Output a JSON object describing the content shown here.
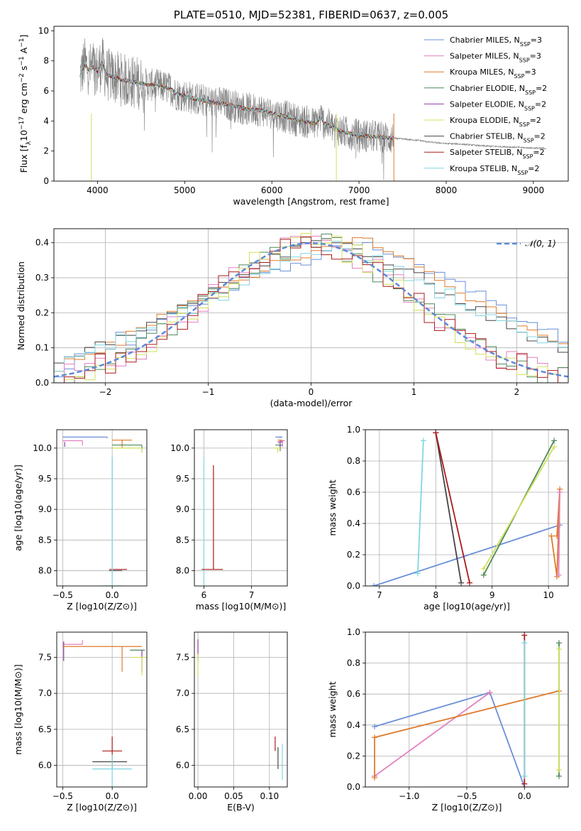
{
  "figure_title": "PLATE=0510, MJD=52381, FIBERID=0637, z=0.005",
  "colors": {
    "Chabrier MILES": "#6a8fd8",
    "Salpeter MILES": "#e37fbf",
    "Kroupa MILES": "#e07a2a",
    "Chabrier ELODIE": "#4e8a5a",
    "Salpeter ELODIE": "#8e3aa6",
    "Kroupa ELODIE": "#d2e05a",
    "Chabrier STELIB": "#444444",
    "Salpeter STELIB": "#aa1a1a",
    "Kroupa STELIB": "#7fd6e0",
    "data": "#808080",
    "gauss": "#5b8ad8",
    "grid": "#b0b0b0"
  },
  "chart_data": [
    {
      "id": "spectrum",
      "type": "line",
      "title": "PLATE=0510, MJD=52381, FIBERID=0637, z=0.005",
      "xlabel": "wavelength [Angstrom, rest frame]",
      "ylabel": "Flux [f$_\\lambda$10$^{-17}$ erg cm$^{-2}$ s$^{-1}$ A$^{-1}$]",
      "ylabel_parts": [
        "Flux [f",
        "λ",
        "10",
        "−17",
        " erg cm",
        "−2",
        " s",
        "−1",
        " A",
        "−1",
        "]"
      ],
      "xlim": [
        3500,
        9400
      ],
      "ylim": [
        0,
        10.3
      ],
      "xticks": [
        4000,
        5000,
        6000,
        7000,
        8000,
        9000
      ],
      "yticks": [
        0,
        2,
        4,
        6,
        8,
        10
      ],
      "grid": false,
      "legend_position": "top-right",
      "legend": [
        {
          "label": "Chabrier MILES",
          "sub": "3"
        },
        {
          "label": "Salpeter MILES",
          "sub": "3"
        },
        {
          "label": "Kroupa MILES",
          "sub": "3"
        },
        {
          "label": "Chabrier ELODIE",
          "sub": "2"
        },
        {
          "label": "Salpeter ELODIE",
          "sub": "2"
        },
        {
          "label": "Kroupa ELODIE",
          "sub": "2"
        },
        {
          "label": "Chabrier STELIB",
          "sub": "2"
        },
        {
          "label": "Salpeter STELIB",
          "sub": "2"
        },
        {
          "label": "Kroupa STELIB",
          "sub": "2"
        }
      ],
      "legend_prefix": ", N",
      "legend_sub_label": "SSP",
      "model_continuum": {
        "x": [
          3800,
          3850,
          3900,
          3950,
          4000,
          4050,
          4100,
          4200,
          4300,
          4400,
          4500,
          4600,
          4700,
          4800,
          4850,
          4900,
          5000,
          5100,
          5200,
          5300,
          5400,
          5500,
          5600,
          5700,
          5800,
          5900,
          6000,
          6100,
          6200,
          6300,
          6400,
          6500,
          6560,
          6600,
          6700,
          6800,
          6900,
          7000,
          7100,
          7200,
          7300,
          7400,
          7500,
          7600,
          7700,
          7800,
          7900,
          8000,
          8100,
          8200,
          8300,
          8400,
          8500,
          8600,
          8700,
          8800,
          8900,
          9000,
          9100
        ],
        "y": [
          7.0,
          7.8,
          7.4,
          7.6,
          7.3,
          7.9,
          7.1,
          6.9,
          6.7,
          6.6,
          6.5,
          6.4,
          6.35,
          6.2,
          6.1,
          5.8,
          5.7,
          5.5,
          5.4,
          5.25,
          5.2,
          5.1,
          4.95,
          4.8,
          4.75,
          4.7,
          4.5,
          4.4,
          4.2,
          4.05,
          3.95,
          3.8,
          4.25,
          3.85,
          3.6,
          3.3,
          3.15,
          3.05,
          3.0,
          2.95,
          2.9,
          2.85,
          2.8,
          2.75,
          2.7,
          2.6,
          2.55,
          2.5,
          2.48,
          2.45,
          2.4,
          2.35,
          2.32,
          2.3,
          2.28,
          2.25,
          2.22,
          2.2,
          2.18
        ]
      },
      "data_noise_cutoff": 7400,
      "data_extent": [
        3800,
        9150
      ]
    },
    {
      "id": "residuals",
      "type": "area",
      "xlabel": "(data-model)/error",
      "ylabel": "Normed distribution",
      "xlim": [
        -2.5,
        2.5
      ],
      "ylim": [
        0,
        0.44
      ],
      "xticks": [
        -2,
        -1,
        0,
        1,
        2
      ],
      "yticks": [
        0.0,
        0.1,
        0.2,
        0.3,
        0.4
      ],
      "grid": true,
      "legend_position": "top-right",
      "gauss_label": "𝒩(0, 1)",
      "bin_edges_start": -2.5,
      "bin_width": 0.1,
      "histograms": [
        {
          "model": "Chabrier MILES",
          "values": [
            0.03,
            0.05,
            0.07,
            0.08,
            0.09,
            0.1,
            0.13,
            0.12,
            0.14,
            0.16,
            0.18,
            0.19,
            0.2,
            0.22,
            0.23,
            0.24,
            0.25,
            0.27,
            0.29,
            0.3,
            0.32,
            0.31,
            0.33,
            0.35,
            0.34,
            0.36,
            0.37,
            0.38,
            0.39,
            0.4,
            0.41,
            0.39,
            0.38,
            0.37,
            0.36,
            0.34,
            0.32,
            0.31,
            0.3,
            0.28,
            0.27,
            0.25,
            0.24,
            0.22,
            0.2,
            0.19,
            0.17,
            0.16,
            0.14,
            0.12
          ]
        },
        {
          "model": "Kroupa MILES",
          "values": [
            0.04,
            0.06,
            0.08,
            0.07,
            0.1,
            0.11,
            0.12,
            0.14,
            0.15,
            0.17,
            0.19,
            0.2,
            0.21,
            0.23,
            0.24,
            0.25,
            0.26,
            0.28,
            0.3,
            0.31,
            0.33,
            0.35,
            0.34,
            0.36,
            0.37,
            0.39,
            0.38,
            0.4,
            0.39,
            0.41,
            0.4,
            0.38,
            0.37,
            0.35,
            0.34,
            0.33,
            0.31,
            0.29,
            0.27,
            0.26,
            0.24,
            0.23,
            0.21,
            0.2,
            0.18,
            0.17,
            0.15,
            0.14,
            0.12,
            0.11
          ]
        },
        {
          "model": "Chabrier STELIB",
          "values": [
            0.05,
            0.06,
            0.08,
            0.09,
            0.11,
            0.12,
            0.13,
            0.15,
            0.16,
            0.18,
            0.19,
            0.21,
            0.22,
            0.24,
            0.25,
            0.27,
            0.28,
            0.29,
            0.31,
            0.33,
            0.34,
            0.36,
            0.37,
            0.38,
            0.39,
            0.4,
            0.41,
            0.4,
            0.39,
            0.38,
            0.37,
            0.36,
            0.34,
            0.33,
            0.31,
            0.3,
            0.28,
            0.27,
            0.25,
            0.24,
            0.22,
            0.21,
            0.19,
            0.18,
            0.16,
            0.15,
            0.13,
            0.12,
            0.11,
            0.1
          ]
        },
        {
          "model": "Kroupa STELIB",
          "values": [
            0.04,
            0.07,
            0.09,
            0.1,
            0.12,
            0.11,
            0.14,
            0.13,
            0.16,
            0.15,
            0.18,
            0.2,
            0.22,
            0.21,
            0.24,
            0.26,
            0.25,
            0.28,
            0.29,
            0.31,
            0.3,
            0.33,
            0.35,
            0.36,
            0.38,
            0.37,
            0.39,
            0.4,
            0.38,
            0.37,
            0.35,
            0.36,
            0.33,
            0.32,
            0.3,
            0.29,
            0.27,
            0.25,
            0.26,
            0.23,
            0.22,
            0.2,
            0.18,
            0.19,
            0.17,
            0.15,
            0.14,
            0.12,
            0.13,
            0.11
          ]
        }
      ]
    },
    {
      "id": "age_vs_Z",
      "type": "scatter",
      "xlabel": "Z [log10(Z/Z⊙)]",
      "ylabel": "age  [log10(age/yr)]",
      "xlim": [
        -0.56,
        0.35
      ],
      "ylim": [
        7.75,
        10.3
      ],
      "xticks": [
        -0.5,
        0.0,
        0.5
      ],
      "yticks": [
        8.0,
        8.5,
        9.0,
        9.5,
        10.0
      ],
      "grid": true
    },
    {
      "id": "age_vs_mass",
      "type": "scatter",
      "xlabel": "mass [log10(M/M⊙)]",
      "xlim": [
        5.8,
        7.75
      ],
      "ylim": [
        7.75,
        10.3
      ],
      "xticks": [
        6,
        7
      ],
      "yticks": [
        8.0,
        8.5,
        9.0,
        9.5,
        10.0
      ],
      "grid": true
    },
    {
      "id": "weight_vs_age",
      "type": "line",
      "xlabel": "age  [log10(age/yr)]",
      "ylabel": "mass weight",
      "xlim": [
        6.75,
        10.35
      ],
      "ylim": [
        0,
        1.0
      ],
      "xticks": [
        7,
        8,
        9,
        10
      ],
      "yticks": [
        0.0,
        0.2,
        0.4,
        0.6,
        0.8,
        1.0
      ],
      "grid": true,
      "series": [
        {
          "model": "Chabrier MILES",
          "x": [
            6.9,
            10.2
          ],
          "y": [
            0.0,
            0.39
          ]
        },
        {
          "model": "Kroupa MILES",
          "x": [
            10.05,
            10.15,
            10.2,
            10.15
          ],
          "y": [
            0.32,
            0.06,
            0.62,
            0.32
          ]
        },
        {
          "model": "Salpeter MILES",
          "x": [
            10.2,
            10.18
          ],
          "y": [
            0.6,
            0.07
          ]
        },
        {
          "model": "Chabrier ELODIE",
          "x": [
            8.85,
            10.1
          ],
          "y": [
            0.07,
            0.93
          ]
        },
        {
          "model": "Kroupa ELODIE",
          "x": [
            8.85,
            10.1
          ],
          "y": [
            0.11,
            0.89
          ]
        },
        {
          "model": "Chabrier STELIB",
          "x": [
            8.0,
            8.45
          ],
          "y": [
            0.98,
            0.02
          ]
        },
        {
          "model": "Salpeter STELIB",
          "x": [
            8.0,
            8.6
          ],
          "y": [
            0.98,
            0.02
          ]
        },
        {
          "model": "Kroupa STELIB",
          "x": [
            7.68,
            7.78
          ],
          "y": [
            0.08,
            0.93
          ]
        }
      ]
    },
    {
      "id": "mass_vs_Z",
      "type": "scatter",
      "xlabel": "Z [log10(Z/Z⊙)]",
      "ylabel": "mass [log10(M/M⊙)]",
      "xlim": [
        -0.56,
        0.35
      ],
      "ylim": [
        5.7,
        7.85
      ],
      "xticks": [
        -0.5,
        0.0
      ],
      "yticks": [
        6.0,
        6.5,
        7.0,
        7.5
      ],
      "grid": true
    },
    {
      "id": "mass_vs_ebv",
      "type": "scatter",
      "xlabel": "E(B-V)",
      "xlim": [
        -0.005,
        0.125
      ],
      "ylim": [
        5.7,
        7.85
      ],
      "xticks": [
        0.0,
        0.05,
        0.1
      ],
      "xtick_labels": [
        "0.00",
        "0.05",
        "0.10"
      ],
      "yticks": [
        6.0,
        6.5,
        7.0,
        7.5
      ],
      "grid": true
    },
    {
      "id": "weight_vs_Z",
      "type": "line",
      "xlabel": "Z [log10(Z/Z⊙)]",
      "ylabel": "mass weight",
      "xlim": [
        -1.38,
        0.38
      ],
      "ylim": [
        0,
        1.0
      ],
      "xticks": [
        -1.0,
        -0.5,
        0.0
      ],
      "yticks": [
        0.0,
        0.2,
        0.4,
        0.6,
        0.8,
        1.0
      ],
      "grid": true,
      "series": [
        {
          "model": "Chabrier MILES",
          "x": [
            -1.3,
            -0.3,
            0.0
          ],
          "y": [
            0.39,
            0.61,
            0.0
          ]
        },
        {
          "model": "Salpeter MILES",
          "x": [
            -1.3,
            -0.3
          ],
          "y": [
            0.07,
            0.61
          ]
        },
        {
          "model": "Kroupa MILES",
          "x": [
            -1.3,
            -1.3,
            0.3
          ],
          "y": [
            0.06,
            0.32,
            0.62
          ]
        },
        {
          "model": "Chabrier ELODIE",
          "x": [
            0.3,
            0.3
          ],
          "y": [
            0.07,
            0.93
          ]
        },
        {
          "model": "Kroupa ELODIE",
          "x": [
            0.3,
            0.3
          ],
          "y": [
            0.11,
            0.89
          ]
        },
        {
          "model": "Salpeter STELIB",
          "x": [
            0.0,
            0.0
          ],
          "y": [
            0.02,
            0.98
          ]
        },
        {
          "model": "Kroupa STELIB",
          "x": [
            0.0,
            0.0
          ],
          "y": [
            0.07,
            0.93
          ]
        }
      ]
    }
  ]
}
